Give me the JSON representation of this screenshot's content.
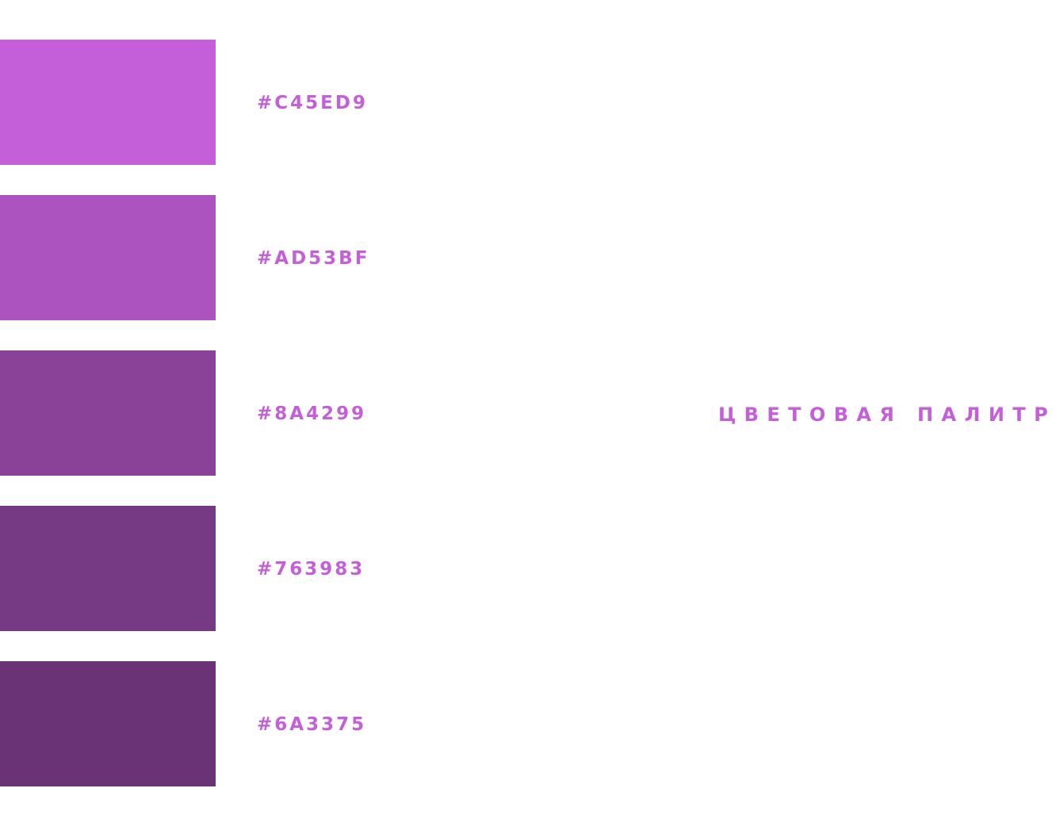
{
  "title": "ЦВЕТОВАЯ ПАЛИТРА",
  "accent_color": "#c45ed9",
  "swatches": [
    {
      "code": "#C45ED9",
      "color": "#c45ed9"
    },
    {
      "code": "#AD53BF",
      "color": "#ad53bf"
    },
    {
      "code": "#8A4299",
      "color": "#8a4299"
    },
    {
      "code": "#763983",
      "color": "#763983"
    },
    {
      "code": "#6A3375",
      "color": "#6a3375"
    }
  ]
}
